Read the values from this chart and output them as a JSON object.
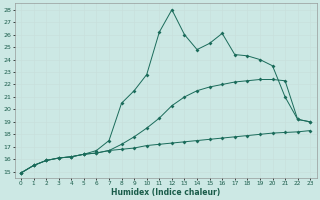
{
  "bg_color": "#cce8e4",
  "grid_color": "#aacccc",
  "line_color": "#1a6b5a",
  "xlabel": "Humidex (Indice chaleur)",
  "xlim": [
    -0.5,
    23.5
  ],
  "ylim": [
    14.5,
    28.5
  ],
  "xtick_vals": [
    0,
    1,
    2,
    3,
    4,
    5,
    6,
    7,
    8,
    9,
    10,
    11,
    12,
    13,
    14,
    15,
    16,
    17,
    18,
    19,
    20,
    21,
    22,
    23
  ],
  "ytick_vals": [
    15,
    16,
    17,
    18,
    19,
    20,
    21,
    22,
    23,
    24,
    25,
    26,
    27,
    28
  ],
  "line1_x": [
    0,
    1,
    2,
    3,
    4,
    5,
    6,
    7,
    8,
    9,
    10,
    11,
    12,
    13,
    14,
    15,
    16,
    17,
    18,
    19,
    20,
    21,
    22,
    23
  ],
  "line1_y": [
    14.9,
    15.5,
    15.9,
    16.1,
    16.2,
    16.4,
    16.5,
    16.7,
    16.8,
    16.9,
    17.1,
    17.2,
    17.3,
    17.4,
    17.5,
    17.6,
    17.7,
    17.8,
    17.9,
    18.0,
    18.1,
    18.15,
    18.2,
    18.3
  ],
  "line2_x": [
    0,
    1,
    2,
    3,
    4,
    5,
    6,
    7,
    8,
    9,
    10,
    11,
    12,
    13,
    14,
    15,
    16,
    17,
    18,
    19,
    20,
    21,
    22,
    23
  ],
  "line2_y": [
    14.9,
    15.5,
    15.9,
    16.1,
    16.2,
    16.4,
    16.5,
    16.7,
    17.2,
    17.8,
    18.5,
    19.3,
    20.3,
    21.0,
    21.5,
    21.8,
    22.0,
    22.2,
    22.3,
    22.4,
    22.4,
    22.3,
    19.2,
    19.0
  ],
  "line3_x": [
    0,
    1,
    2,
    3,
    4,
    5,
    6,
    7,
    8,
    9,
    10,
    11,
    12,
    13,
    14,
    15,
    16,
    17,
    18,
    19,
    20,
    21,
    22,
    23
  ],
  "line3_y": [
    14.9,
    15.5,
    15.9,
    16.1,
    16.2,
    16.4,
    16.7,
    17.5,
    20.5,
    21.5,
    22.8,
    26.2,
    28.0,
    26.0,
    24.8,
    25.3,
    26.1,
    24.4,
    24.3,
    24.0,
    23.5,
    21.0,
    19.2,
    19.0
  ]
}
